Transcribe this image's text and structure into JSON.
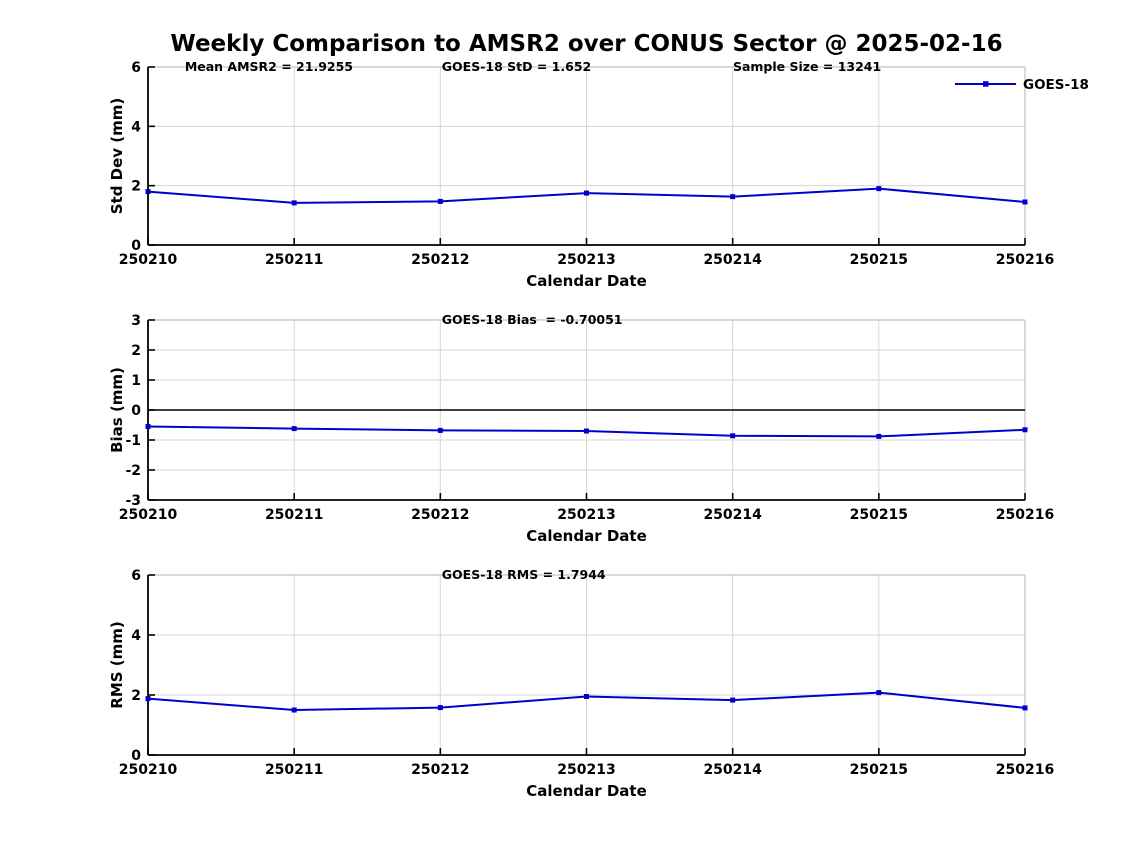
{
  "page": {
    "title": "Weekly Comparison to AMSR2 over CONUS Sector @ 2025-02-16"
  },
  "style": {
    "line_color": "#0000cc",
    "grid_color": "#d6d6d6",
    "box_color": "#b3b3b3",
    "axis_color": "#000000",
    "text_color": "#000000",
    "background": "#ffffff",
    "marker": "square"
  },
  "chart_data": [
    {
      "type": "line",
      "id": "stddev",
      "ylabel": "Std Dev (mm)",
      "xlabel": "Calendar Date",
      "categories": [
        "250210",
        "250211",
        "250212",
        "250213",
        "250214",
        "250215",
        "250216"
      ],
      "series": [
        {
          "name": "GOES-18",
          "values": [
            1.8,
            1.42,
            1.47,
            1.75,
            1.63,
            1.9,
            1.45
          ]
        }
      ],
      "ylim": [
        0,
        6
      ],
      "yticks": [
        0,
        2,
        4,
        6
      ],
      "grid": true,
      "zero_line": false,
      "legend": {
        "show": true,
        "position": "top-right",
        "label": "GOES-18"
      },
      "annotations": [
        {
          "text": "Mean AMSR2 = 21.9255",
          "xfrac": 0.042
        },
        {
          "text": "GOES-18 StD = 1.652",
          "xfrac": 0.335
        },
        {
          "text": "Sample Size = 13241",
          "xfrac": 0.667
        }
      ]
    },
    {
      "type": "line",
      "id": "bias",
      "ylabel": "Bias (mm)",
      "xlabel": "Calendar Date",
      "categories": [
        "250210",
        "250211",
        "250212",
        "250213",
        "250214",
        "250215",
        "250216"
      ],
      "series": [
        {
          "name": "GOES-18",
          "values": [
            -0.55,
            -0.62,
            -0.68,
            -0.7,
            -0.86,
            -0.88,
            -0.66
          ]
        }
      ],
      "ylim": [
        -3,
        3
      ],
      "yticks": [
        -3,
        -2,
        -1,
        0,
        1,
        2,
        3
      ],
      "grid": true,
      "zero_line": true,
      "legend": {
        "show": false
      },
      "annotations": [
        {
          "text": "GOES-18 Bias  = -0.70051",
          "xfrac": 0.335
        }
      ]
    },
    {
      "type": "line",
      "id": "rms",
      "ylabel": "RMS (mm)",
      "xlabel": "Calendar Date",
      "categories": [
        "250210",
        "250211",
        "250212",
        "250213",
        "250214",
        "250215",
        "250216"
      ],
      "series": [
        {
          "name": "GOES-18",
          "values": [
            1.88,
            1.5,
            1.58,
            1.95,
            1.83,
            2.08,
            1.57
          ]
        }
      ],
      "ylim": [
        0,
        6
      ],
      "yticks": [
        0,
        2,
        4,
        6
      ],
      "grid": true,
      "zero_line": false,
      "legend": {
        "show": false
      },
      "annotations": [
        {
          "text": "GOES-18 RMS = 1.7944",
          "xfrac": 0.335
        }
      ]
    }
  ]
}
